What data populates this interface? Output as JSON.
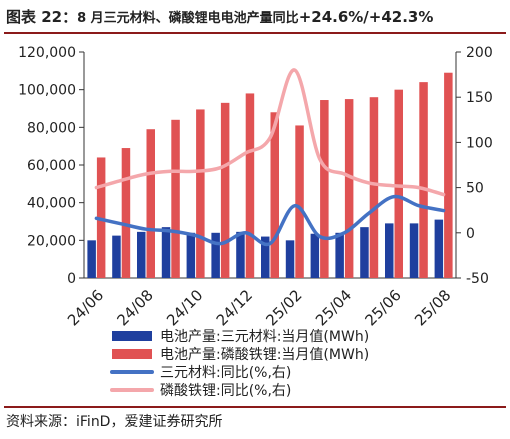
{
  "title": {
    "prefix": "图表 22：",
    "middle": "8 月三元材料、磷酸锂电电池产量同比",
    "suffix": "+24.6%/+42.3%"
  },
  "source": "资料来源：iFinD，爱建证券研究所",
  "chart_data": {
    "type": "bar",
    "categories": [
      "24/06",
      "24/07",
      "24/08",
      "24/09",
      "24/10",
      "24/11",
      "24/12",
      "25/01",
      "25/02",
      "25/03",
      "25/04",
      "25/05",
      "25/06",
      "25/07",
      "25/08"
    ],
    "tick_labels": [
      "24/06",
      "24/08",
      "24/10",
      "24/12",
      "25/02",
      "25/04",
      "25/06",
      "25/08"
    ],
    "tick_indices": [
      0,
      2,
      4,
      6,
      8,
      10,
      12,
      14
    ],
    "ylim_left": [
      0,
      120000
    ],
    "yticks_left": [
      "0",
      "20,000",
      "40,000",
      "60,000",
      "80,000",
      "100,000",
      "120,000"
    ],
    "ylim_right": [
      -50,
      200
    ],
    "yticks_right": [
      "-50",
      "0",
      "50",
      "100",
      "150",
      "200"
    ],
    "bar_series": [
      {
        "name": "电池产量:三元材料:当月值(MWh)",
        "color": "#1f3f9e",
        "values": [
          20000,
          22500,
          24500,
          27000,
          24000,
          24000,
          24500,
          22000,
          20000,
          23500,
          24000,
          27000,
          29000,
          29000,
          31000
        ]
      },
      {
        "name": "电池产量:磷酸铁锂:当月值(MWh)",
        "color": "#e05253",
        "values": [
          64000,
          69000,
          79000,
          84000,
          89500,
          93000,
          98000,
          88000,
          81000,
          94500,
          95000,
          96000,
          100000,
          104000,
          109000
        ]
      }
    ],
    "line_series": [
      {
        "name": "三元材料:同比(%,右)",
        "color": "#4472c4",
        "values": [
          16,
          10,
          4,
          2,
          -3,
          -12,
          0,
          -12,
          30,
          -4,
          0,
          22,
          40,
          30,
          24.6
        ]
      },
      {
        "name": "磷酸铁锂:同比(%,右)",
        "color": "#f4a7ab",
        "values": [
          50,
          58,
          65,
          68,
          68,
          72,
          88,
          105,
          180,
          82,
          65,
          55,
          52,
          50,
          42.3
        ]
      }
    ],
    "legend_position": "bottom",
    "grid": false
  }
}
